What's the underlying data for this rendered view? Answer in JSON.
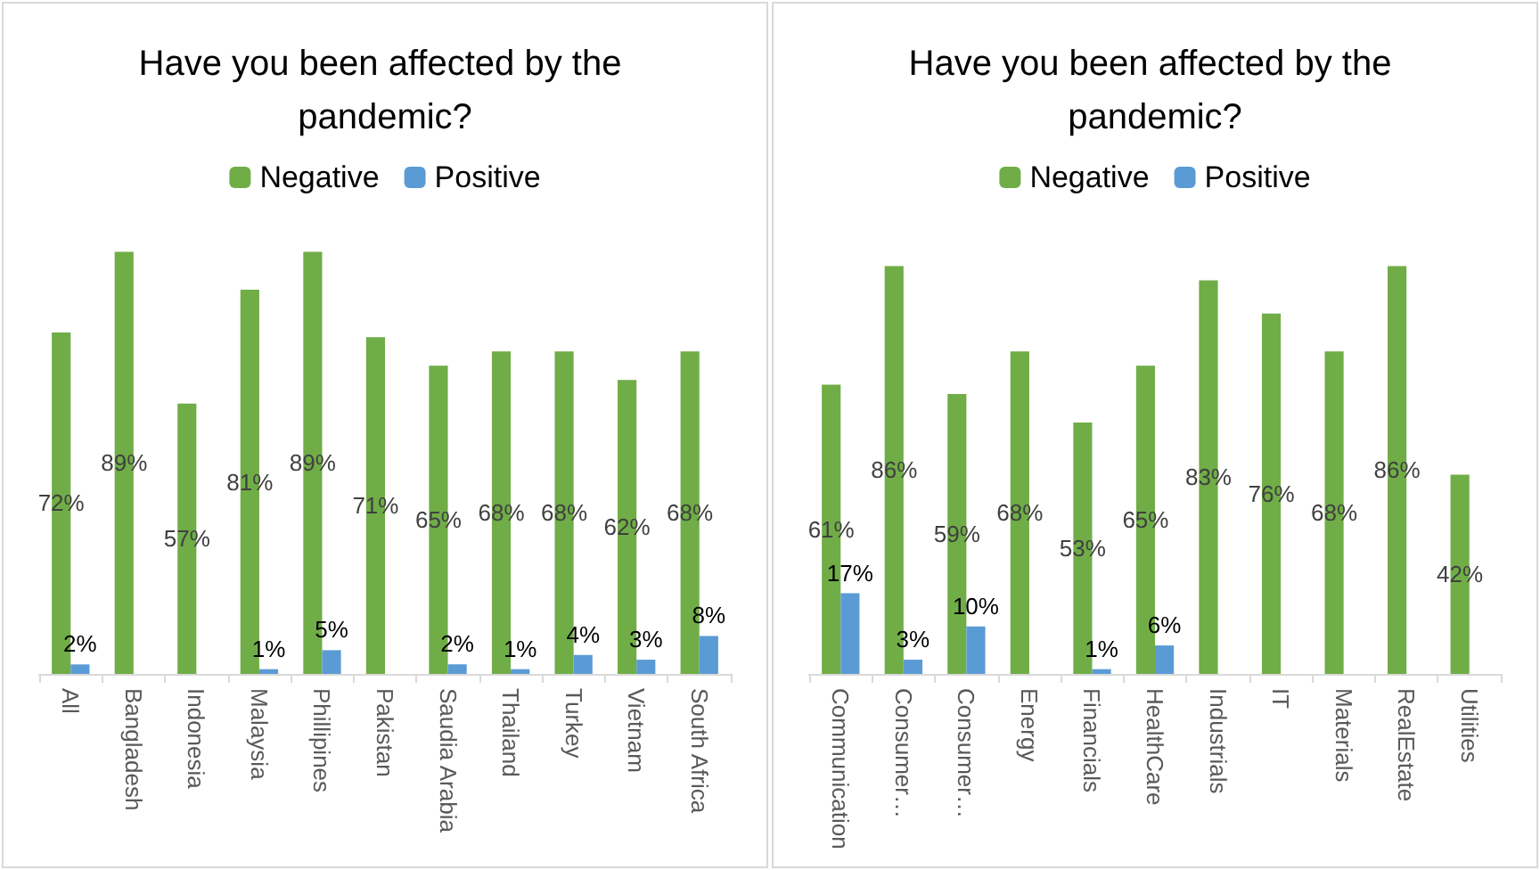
{
  "chart_data": [
    {
      "type": "bar",
      "title": "Have you been affected by the pandemic?",
      "categories": [
        "All",
        "Bangladesh",
        "Indonesia",
        "Malaysia",
        "Phillipines",
        "Pakistan",
        "Saudia Arabia",
        "Thailand",
        "Turkey",
        "Vietnam",
        "South Africa"
      ],
      "legend": "top",
      "series": [
        {
          "name": "Negative",
          "color": "#70ad47",
          "values": [
            72,
            89,
            57,
            81,
            89,
            71,
            65,
            68,
            68,
            62,
            68
          ],
          "value_labels": [
            "72%",
            "89%",
            "57%",
            "81%",
            "89%",
            "71%",
            "65%",
            "68%",
            "68%",
            "62%",
            "68%"
          ]
        },
        {
          "name": "Positive",
          "color": "#5b9bd5",
          "values": [
            2,
            null,
            null,
            1,
            5,
            null,
            2,
            1,
            4,
            3,
            8
          ],
          "value_labels": [
            "2%",
            null,
            null,
            "1%",
            "5%",
            null,
            "2%",
            "1%",
            "4%",
            "3%",
            "8%"
          ]
        }
      ]
    },
    {
      "type": "bar",
      "title": "Have you been affected by the pandemic?",
      "categories": [
        "Communication",
        "Consumer…",
        "Consumer…",
        "Energy",
        "Financials",
        "HealthCare",
        "Industrials",
        "IT",
        "Materials",
        "RealEstate",
        "Utilities"
      ],
      "legend": "top",
      "series": [
        {
          "name": "Negative",
          "color": "#70ad47",
          "values": [
            61,
            86,
            59,
            68,
            53,
            65,
            83,
            76,
            68,
            86,
            42
          ],
          "value_labels": [
            "61%",
            "86%",
            "59%",
            "68%",
            "53%",
            "65%",
            "83%",
            "76%",
            "68%",
            "86%",
            "42%"
          ]
        },
        {
          "name": "Positive",
          "color": "#5b9bd5",
          "values": [
            17,
            3,
            10,
            null,
            1,
            6,
            null,
            null,
            null,
            null,
            null
          ],
          "value_labels": [
            "17%",
            "3%",
            "10%",
            null,
            "1%",
            "6%",
            null,
            null,
            null,
            null,
            null
          ]
        }
      ]
    }
  ]
}
